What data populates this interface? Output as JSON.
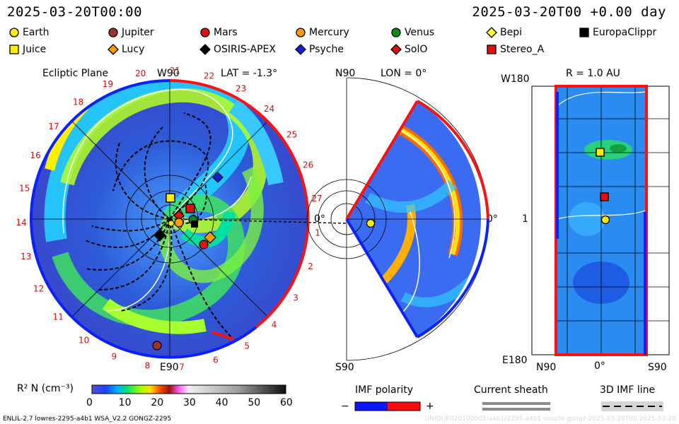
{
  "header": {
    "left_title": "2025-03-20T00:00",
    "right_title": "2025-03-20T00 +0.00 day"
  },
  "bodies": [
    {
      "name": "Earth",
      "shape": "circle",
      "color": "#ffea00"
    },
    {
      "name": "Jupiter",
      "shape": "circle",
      "color": "#a0322c"
    },
    {
      "name": "Mars",
      "shape": "circle",
      "color": "#e01010"
    },
    {
      "name": "Mercury",
      "shape": "circle",
      "color": "#ff9a00"
    },
    {
      "name": "Venus",
      "shape": "circle",
      "color": "#0a8a1a"
    },
    {
      "name": "Bepi",
      "shape": "diamond",
      "color": "#ffff30"
    },
    {
      "name": "EuropaClippr",
      "shape": "square",
      "color": "#000000"
    },
    {
      "name": "Juice",
      "shape": "square",
      "color": "#ffee00"
    },
    {
      "name": "Lucy",
      "shape": "diamond",
      "color": "#ff9a00"
    },
    {
      "name": "OSIRIS-APEX",
      "shape": "diamond",
      "color": "#000000"
    },
    {
      "name": "Psyche",
      "shape": "diamond",
      "color": "#1020e0"
    },
    {
      "name": "SolO",
      "shape": "diamond",
      "color": "#e01010"
    },
    {
      "name": "Stereo_A",
      "shape": "square",
      "color": "#e01010"
    }
  ],
  "ecliptic": {
    "label": "Ecliptic Plane",
    "top": "W90",
    "lat": "LAT = -1.3°",
    "bottom": "E90",
    "right": "0°",
    "ticks": [
      "21",
      "22",
      "23",
      "24",
      "25",
      "26",
      "27",
      "1",
      "2",
      "3",
      "4",
      "5",
      "6",
      "7",
      "8",
      "9",
      "10",
      "11",
      "12",
      "13",
      "14",
      "15",
      "16",
      "17",
      "18",
      "19",
      "20"
    ]
  },
  "meridional": {
    "top": "N90",
    "lon": "LON = 0°",
    "bottom": "S90",
    "right": "0°"
  },
  "sphere": {
    "r": "R = 1.0 AU",
    "top": "W180",
    "bottom": "E180",
    "mid": "1",
    "x_left": "N90",
    "x_mid": "0°",
    "x_right": "S90"
  },
  "colorbar": {
    "label": "R² N (cm⁻³)",
    "ticks": [
      "0",
      "10",
      "20",
      "30",
      "40",
      "50",
      "60"
    ]
  },
  "imf": {
    "label": "IMF polarity",
    "minus": "−",
    "plus": "+",
    "minus_color": "#0a14ff",
    "plus_color": "#ff0a0a"
  },
  "sheath": {
    "label": "Current sheath"
  },
  "imfline": {
    "label": "3D IMF line"
  },
  "footer": {
    "left": "ENLIL-2.7 lowres-2295-a4b1 WSA_V2.2 GONGZ-2295",
    "right": "UNIQUE020100005/a4b1/2295-a4b1 nosplit gongz-2025-03-20T00 2025-03-20"
  }
}
